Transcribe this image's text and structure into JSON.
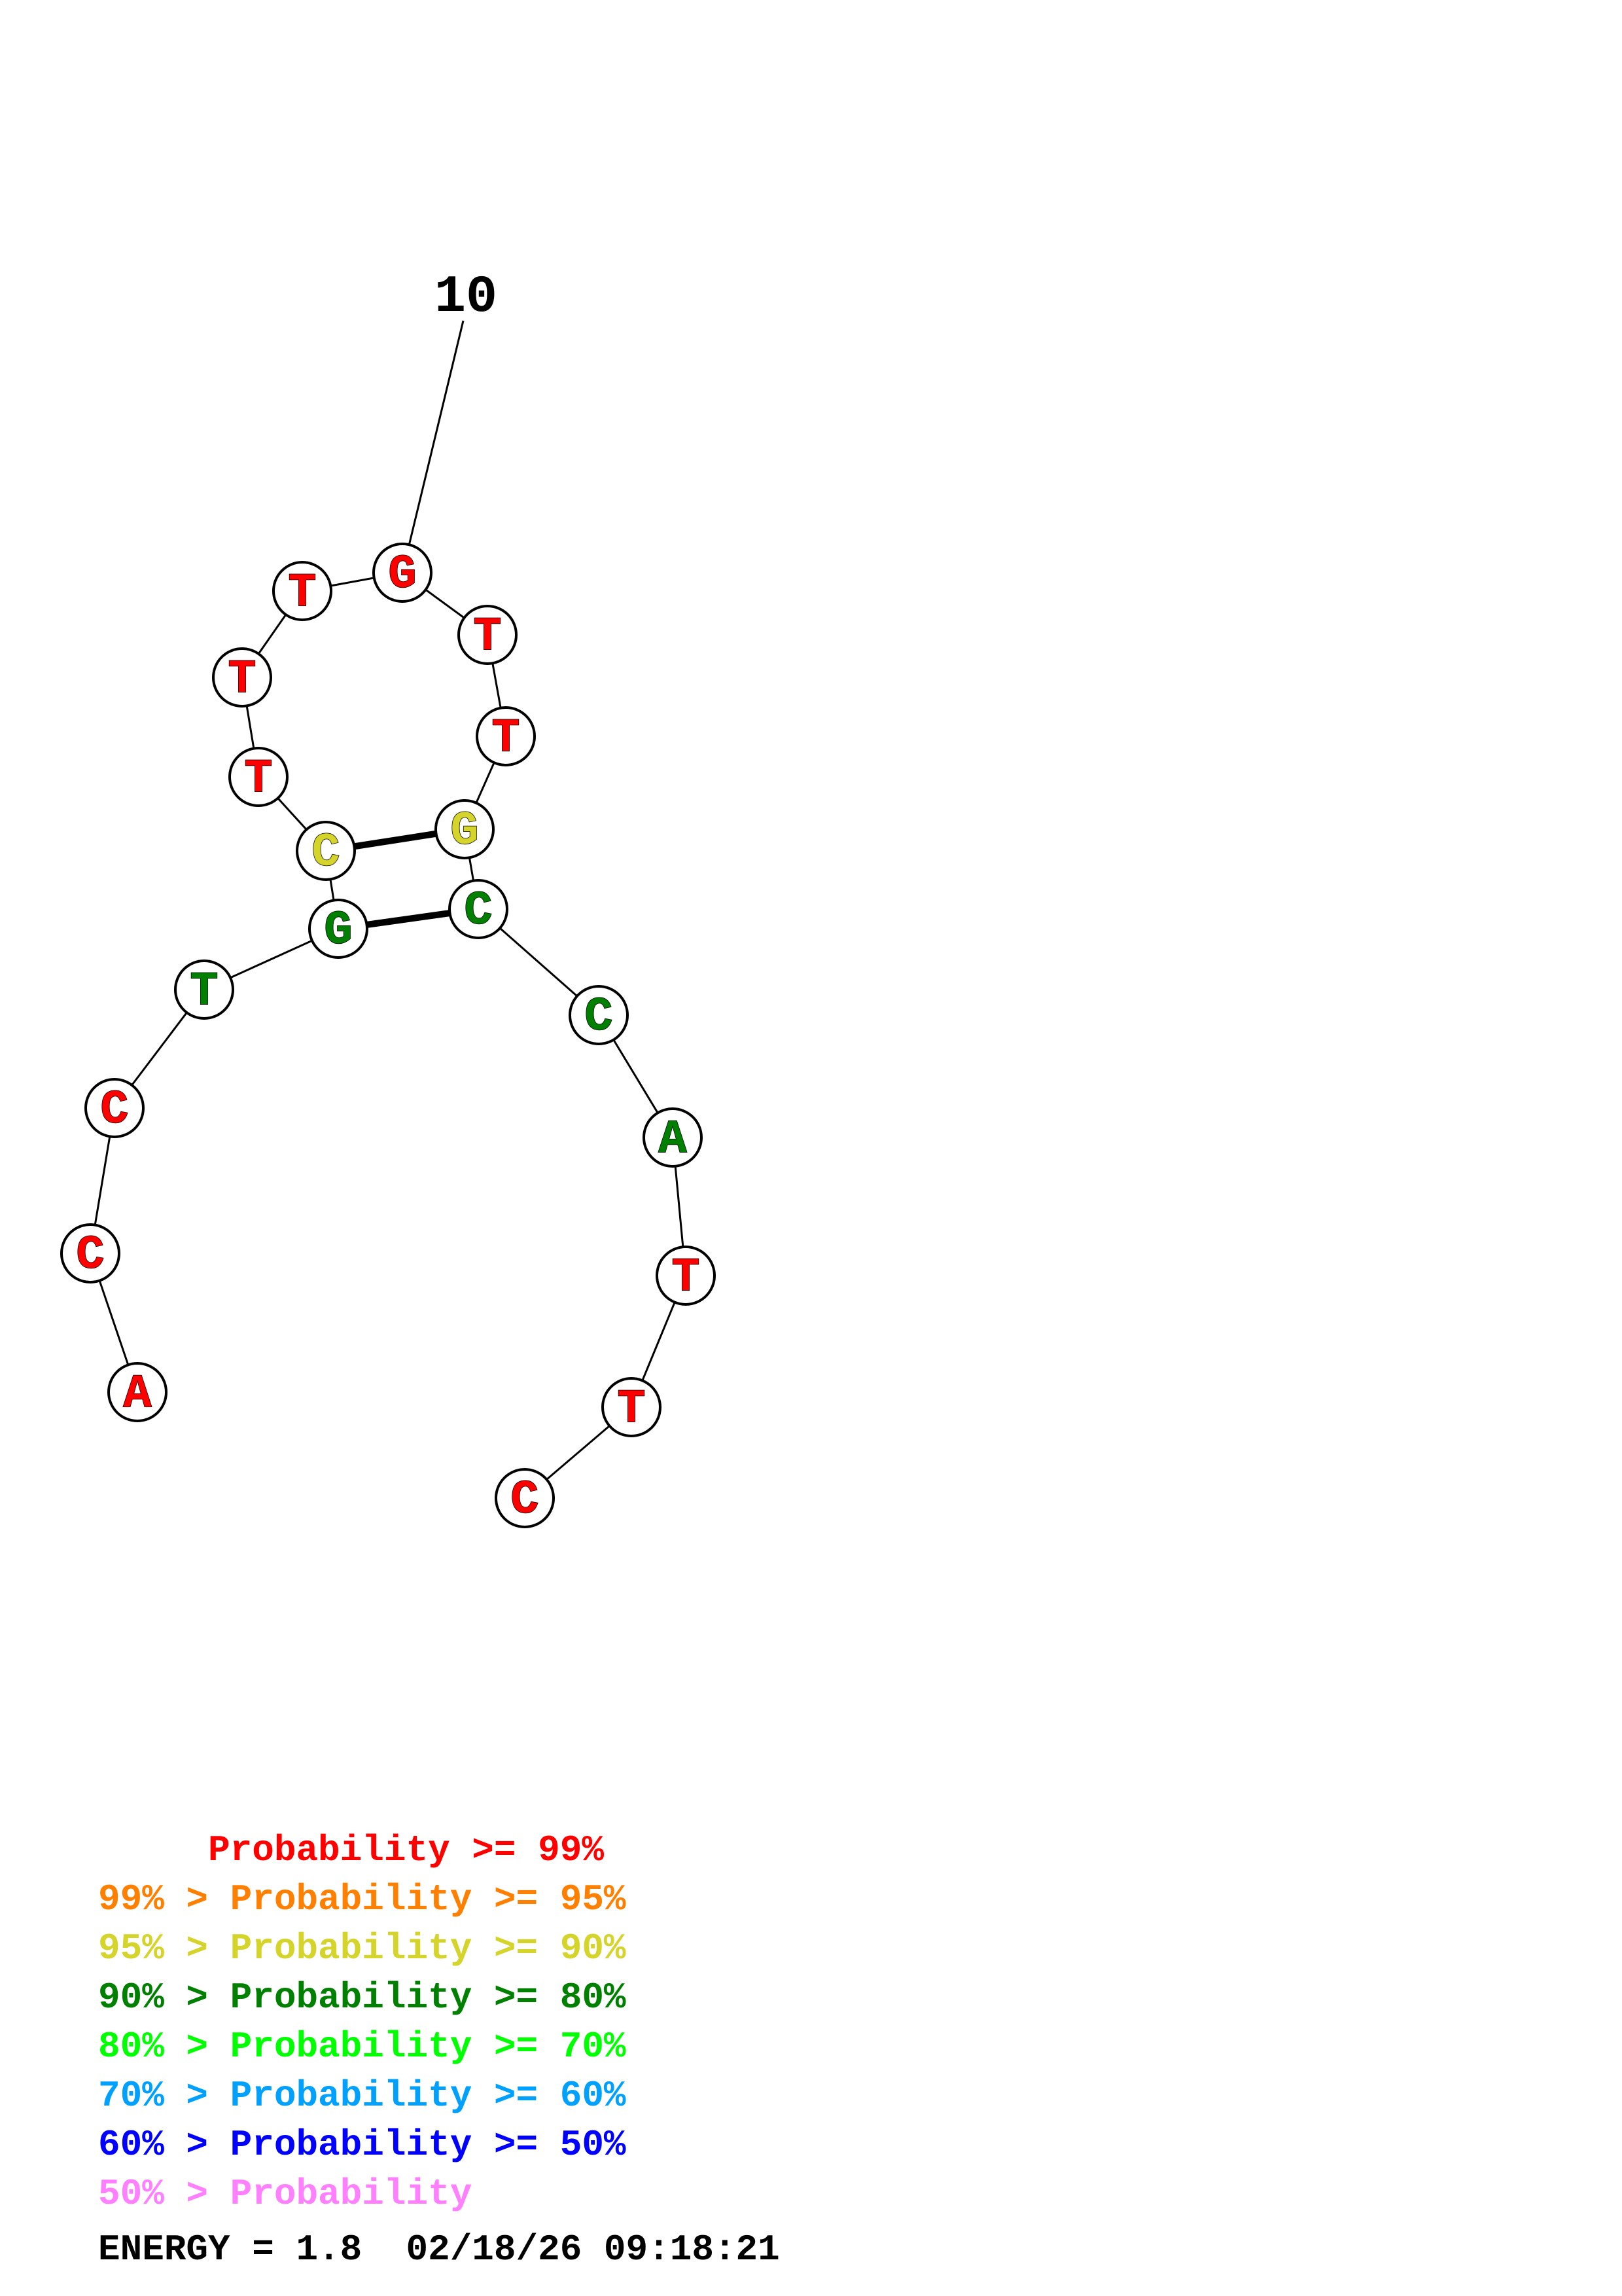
{
  "structure": {
    "sequence": [
      "A",
      "C",
      "C",
      "T",
      "G",
      "C",
      "T",
      "T",
      "T",
      "G",
      "T",
      "T",
      "G",
      "C",
      "C",
      "A",
      "T",
      "T",
      "C"
    ],
    "colors": [
      "#ff0000",
      "#ff0000",
      "#ff0000",
      "#008000",
      "#008000",
      "#d4d42a",
      "#ff0000",
      "#ff0000",
      "#ff0000",
      "#ff0000",
      "#ff0000",
      "#ff0000",
      "#d4d42a",
      "#008000",
      "#008000",
      "#008000",
      "#ff0000",
      "#ff0000",
      "#ff0000"
    ],
    "pairs": [
      [
        5,
        14
      ],
      [
        6,
        13
      ]
    ],
    "tick_label": "10",
    "tick_nucleotide": 10
  },
  "legend": [
    {
      "text": "     Probability >= 99%",
      "color": "#ff0000"
    },
    {
      "text": "99% > Probability >= 95%",
      "color": "#ff8000"
    },
    {
      "text": "95% > Probability >= 90%",
      "color": "#d4d42a"
    },
    {
      "text": "90% > Probability >= 80%",
      "color": "#008000"
    },
    {
      "text": "80% > Probability >= 70%",
      "color": "#00ff00"
    },
    {
      "text": "70% > Probability >= 60%",
      "color": "#00a0ff"
    },
    {
      "text": "60% > Probability >= 50%",
      "color": "#0000ff"
    },
    {
      "text": "50% > Probability",
      "color": "#ff80ff"
    }
  ],
  "energy_text": "ENERGY = 1.8  02/18/26 09:18:21"
}
